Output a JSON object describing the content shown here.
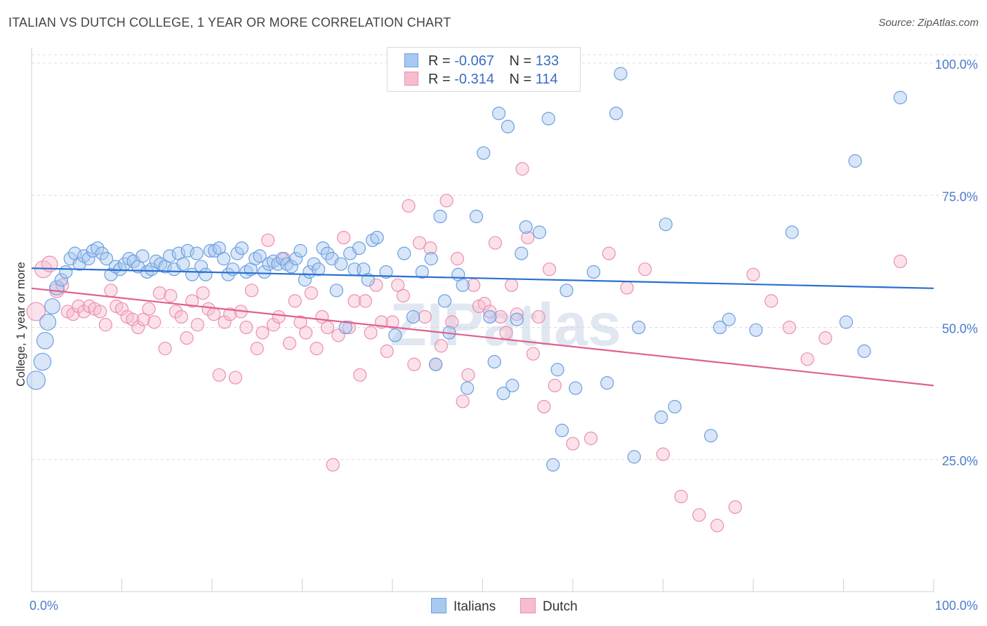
{
  "title": "ITALIAN VS DUTCH COLLEGE, 1 YEAR OR MORE CORRELATION CHART",
  "source": "Source: ZipAtlas.com",
  "legend": {
    "italians": {
      "r_label": "R =",
      "r_value": "-0.067",
      "n_label": "N =",
      "n_value": "133"
    },
    "dutch": {
      "r_label": "R =",
      "r_value": "-0.314",
      "n_label": "N =",
      "n_value": "114"
    }
  },
  "colors": {
    "blue_fill": "#a8c8f0",
    "blue_stroke": "#6a9fe0",
    "blue_line": "#2a6fd0",
    "pink_fill": "#f6bcd0",
    "pink_stroke": "#ec8fb0",
    "pink_line": "#e0608e",
    "tick_text": "#4a7ccc",
    "grid": "#dddddd"
  },
  "chart_data": {
    "type": "scatter",
    "title": "ITALIAN VS DUTCH COLLEGE, 1 YEAR OR MORE CORRELATION CHART",
    "xlabel": "",
    "ylabel": "College, 1 year or more",
    "xlim": [
      0,
      100
    ],
    "ylim": [
      0,
      102
    ],
    "x_tick_labels": [
      "0.0%",
      "100.0%"
    ],
    "y_ticks": [
      25,
      50,
      75,
      100
    ],
    "y_tick_labels": [
      "25.0%",
      "50.0%",
      "75.0%",
      "100.0%"
    ],
    "watermark": "ZIPatlas",
    "series": [
      {
        "name": "Italians",
        "trend": [
          [
            0,
            61.2
          ],
          [
            100,
            57.4
          ]
        ],
        "points": [
          [
            0.5,
            40
          ],
          [
            1.2,
            43.5
          ],
          [
            1.5,
            47.5
          ],
          [
            1.8,
            51
          ],
          [
            2.3,
            54
          ],
          [
            2.8,
            57.5
          ],
          [
            3.3,
            59
          ],
          [
            3.8,
            60.5
          ],
          [
            4.3,
            63
          ],
          [
            4.8,
            64
          ],
          [
            5.3,
            62
          ],
          [
            5.8,
            63.5
          ],
          [
            6.3,
            63
          ],
          [
            6.8,
            64.5
          ],
          [
            7.3,
            65
          ],
          [
            7.8,
            64
          ],
          [
            8.3,
            63
          ],
          [
            8.8,
            60
          ],
          [
            9.3,
            61.5
          ],
          [
            9.8,
            61
          ],
          [
            10.3,
            62
          ],
          [
            10.8,
            63
          ],
          [
            11.3,
            62.5
          ],
          [
            11.8,
            61.5
          ],
          [
            12.3,
            63.5
          ],
          [
            12.8,
            60.5
          ],
          [
            13.3,
            61
          ],
          [
            13.8,
            62.5
          ],
          [
            14.3,
            62
          ],
          [
            14.8,
            61.5
          ],
          [
            15.3,
            63.5
          ],
          [
            15.8,
            61
          ],
          [
            16.3,
            64
          ],
          [
            16.8,
            62
          ],
          [
            17.3,
            64.5
          ],
          [
            17.8,
            60
          ],
          [
            18.3,
            64
          ],
          [
            18.8,
            61.5
          ],
          [
            19.3,
            60
          ],
          [
            19.8,
            64.5
          ],
          [
            20.3,
            64.5
          ],
          [
            20.8,
            65
          ],
          [
            21.3,
            63
          ],
          [
            21.8,
            60
          ],
          [
            22.3,
            61
          ],
          [
            22.8,
            64
          ],
          [
            23.3,
            65
          ],
          [
            23.8,
            60.5
          ],
          [
            24.3,
            61
          ],
          [
            24.8,
            63
          ],
          [
            25.3,
            63.5
          ],
          [
            25.8,
            60.5
          ],
          [
            26.3,
            62
          ],
          [
            26.8,
            62.5
          ],
          [
            27.3,
            62
          ],
          [
            27.8,
            63
          ],
          [
            28.3,
            62
          ],
          [
            28.8,
            61.5
          ],
          [
            29.3,
            63
          ],
          [
            29.8,
            64.5
          ],
          [
            30.3,
            59
          ],
          [
            30.8,
            60.5
          ],
          [
            31.3,
            62
          ],
          [
            31.8,
            61
          ],
          [
            32.3,
            65
          ],
          [
            32.8,
            64
          ],
          [
            33.3,
            63
          ],
          [
            33.8,
            57
          ],
          [
            34.3,
            62
          ],
          [
            34.8,
            50
          ],
          [
            35.3,
            64
          ],
          [
            35.8,
            61
          ],
          [
            36.3,
            65
          ],
          [
            36.8,
            61
          ],
          [
            37.3,
            59
          ],
          [
            37.8,
            66.5
          ],
          [
            38.3,
            67
          ],
          [
            39.3,
            60.5
          ],
          [
            40.3,
            48.5
          ],
          [
            41.3,
            64
          ],
          [
            42.3,
            52
          ],
          [
            43.3,
            60.5
          ],
          [
            44.3,
            63
          ],
          [
            44.8,
            43
          ],
          [
            45.3,
            71
          ],
          [
            45.8,
            55
          ],
          [
            46.3,
            49
          ],
          [
            47.3,
            60
          ],
          [
            47.8,
            58
          ],
          [
            48.3,
            38.5
          ],
          [
            49.3,
            71
          ],
          [
            50.1,
            83
          ],
          [
            50.8,
            52
          ],
          [
            51.3,
            43.5
          ],
          [
            51.8,
            90.5
          ],
          [
            52.3,
            37.5
          ],
          [
            52.8,
            88
          ],
          [
            53.3,
            39
          ],
          [
            53.8,
            51.5
          ],
          [
            54.3,
            64
          ],
          [
            54.8,
            69
          ],
          [
            56.3,
            68
          ],
          [
            57.3,
            89.5
          ],
          [
            57.8,
            24
          ],
          [
            58.3,
            42
          ],
          [
            58.8,
            30.5
          ],
          [
            59.3,
            57
          ],
          [
            60.3,
            38.5
          ],
          [
            62.3,
            60.5
          ],
          [
            63.8,
            39.5
          ],
          [
            64.8,
            90.5
          ],
          [
            65.3,
            98
          ],
          [
            66.8,
            25.5
          ],
          [
            67.3,
            50
          ],
          [
            69.8,
            33
          ],
          [
            70.3,
            69.5
          ],
          [
            71.3,
            35
          ],
          [
            75.3,
            29.5
          ],
          [
            76.3,
            50
          ],
          [
            77.3,
            51.5
          ],
          [
            80.3,
            49.5
          ],
          [
            84.3,
            68
          ],
          [
            90.3,
            51
          ],
          [
            91.3,
            81.5
          ],
          [
            92.3,
            45.5
          ],
          [
            96.3,
            93.5
          ]
        ]
      },
      {
        "name": "Dutch",
        "trend": [
          [
            0,
            57.4
          ],
          [
            100,
            39.0
          ]
        ],
        "points": [
          [
            0.5,
            53
          ],
          [
            1.3,
            61
          ],
          [
            2.0,
            62
          ],
          [
            2.8,
            57
          ],
          [
            3.4,
            58
          ],
          [
            4.0,
            53
          ],
          [
            4.6,
            52.5
          ],
          [
            5.2,
            54
          ],
          [
            5.8,
            53
          ],
          [
            6.4,
            54
          ],
          [
            7.0,
            53.5
          ],
          [
            7.6,
            53
          ],
          [
            8.2,
            50.5
          ],
          [
            8.8,
            57
          ],
          [
            9.4,
            54
          ],
          [
            10.0,
            53.5
          ],
          [
            10.6,
            52
          ],
          [
            11.2,
            51.5
          ],
          [
            11.8,
            50
          ],
          [
            12.4,
            51.5
          ],
          [
            13.0,
            53.5
          ],
          [
            13.6,
            51
          ],
          [
            14.2,
            56.5
          ],
          [
            14.8,
            46
          ],
          [
            15.4,
            56
          ],
          [
            16.0,
            53
          ],
          [
            16.6,
            52
          ],
          [
            17.2,
            48
          ],
          [
            17.8,
            55
          ],
          [
            18.4,
            50.5
          ],
          [
            19.0,
            56.5
          ],
          [
            19.6,
            53.5
          ],
          [
            20.2,
            52.5
          ],
          [
            20.8,
            41
          ],
          [
            21.4,
            51
          ],
          [
            22.0,
            52.5
          ],
          [
            22.6,
            40.5
          ],
          [
            23.2,
            53
          ],
          [
            23.8,
            50
          ],
          [
            24.4,
            57
          ],
          [
            25.0,
            46
          ],
          [
            25.6,
            49
          ],
          [
            26.2,
            66.5
          ],
          [
            26.8,
            50.5
          ],
          [
            27.4,
            52
          ],
          [
            28.0,
            63
          ],
          [
            28.6,
            47
          ],
          [
            29.2,
            55
          ],
          [
            29.8,
            51
          ],
          [
            30.4,
            49
          ],
          [
            31.0,
            56.5
          ],
          [
            31.6,
            46
          ],
          [
            32.2,
            52
          ],
          [
            32.8,
            50
          ],
          [
            33.4,
            24
          ],
          [
            34.0,
            48.5
          ],
          [
            34.6,
            67
          ],
          [
            35.2,
            50
          ],
          [
            35.8,
            55
          ],
          [
            36.4,
            41
          ],
          [
            37.0,
            55
          ],
          [
            37.6,
            49
          ],
          [
            38.2,
            58
          ],
          [
            38.8,
            51
          ],
          [
            39.4,
            45.5
          ],
          [
            40.0,
            51
          ],
          [
            40.6,
            58
          ],
          [
            41.2,
            56
          ],
          [
            41.8,
            73
          ],
          [
            42.4,
            43
          ],
          [
            43.0,
            66
          ],
          [
            43.6,
            52
          ],
          [
            44.2,
            65
          ],
          [
            44.8,
            43
          ],
          [
            45.4,
            46.5
          ],
          [
            46.0,
            74
          ],
          [
            46.6,
            51
          ],
          [
            47.2,
            63
          ],
          [
            47.8,
            36
          ],
          [
            48.4,
            41
          ],
          [
            49.0,
            58
          ],
          [
            49.6,
            54
          ],
          [
            50.2,
            54.5
          ],
          [
            50.8,
            53
          ],
          [
            51.4,
            66
          ],
          [
            52.0,
            52
          ],
          [
            52.6,
            49
          ],
          [
            53.2,
            58
          ],
          [
            53.8,
            52.5
          ],
          [
            54.4,
            80
          ],
          [
            55.0,
            67
          ],
          [
            55.6,
            45
          ],
          [
            56.2,
            52
          ],
          [
            56.8,
            35
          ],
          [
            57.4,
            61
          ],
          [
            58.0,
            39
          ],
          [
            60.0,
            28
          ],
          [
            62.0,
            29
          ],
          [
            64.0,
            64
          ],
          [
            66.0,
            57.5
          ],
          [
            68.0,
            61
          ],
          [
            70.0,
            26
          ],
          [
            72.0,
            18
          ],
          [
            74.0,
            14.5
          ],
          [
            76.0,
            12.5
          ],
          [
            78.0,
            16
          ],
          [
            80.0,
            60
          ],
          [
            82.0,
            55
          ],
          [
            84.0,
            50
          ],
          [
            86.0,
            44
          ],
          [
            88.0,
            48
          ],
          [
            96.3,
            62.5
          ]
        ]
      }
    ]
  }
}
